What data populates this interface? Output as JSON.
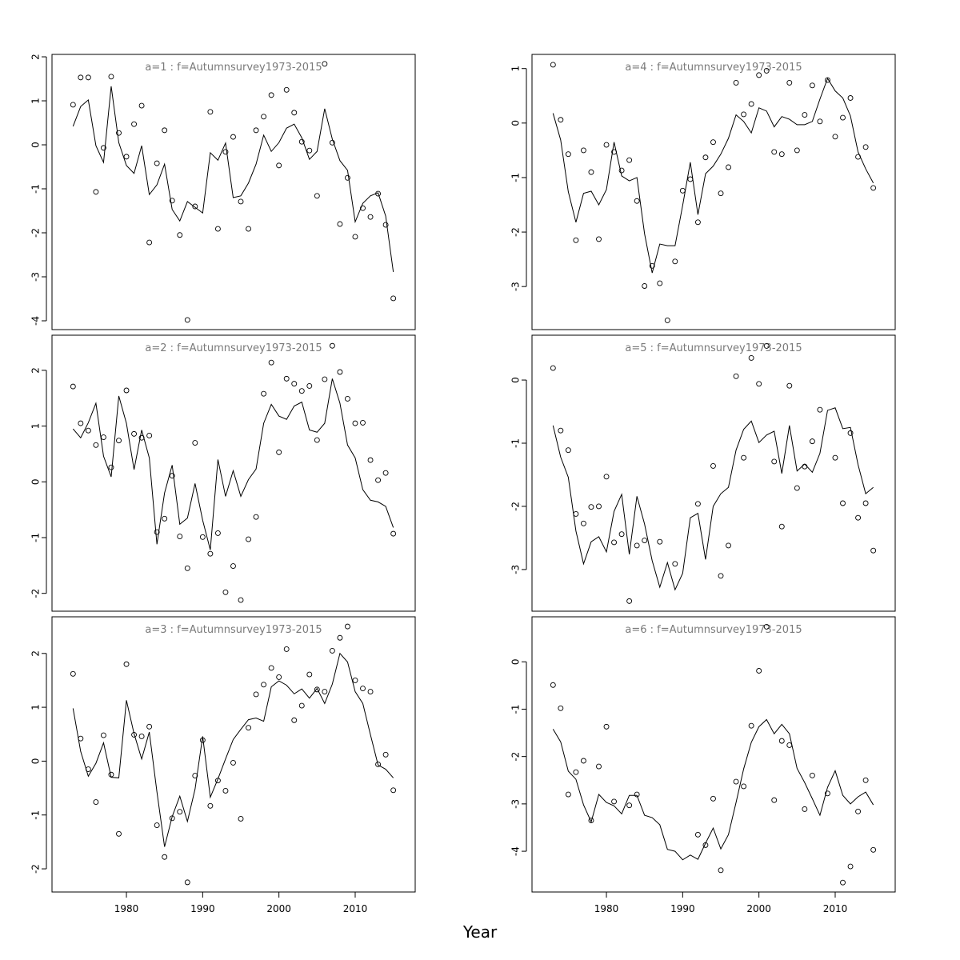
{
  "xlabel": "Year",
  "chart_data": [
    {
      "type": "line",
      "title": "a=1 : f=Autumnsurvey1973-2015",
      "x": [
        1973,
        1974,
        1975,
        1976,
        1977,
        1978,
        1979,
        1980,
        1981,
        1982,
        1983,
        1984,
        1985,
        1986,
        1987,
        1988,
        1989,
        1990,
        1991,
        1992,
        1993,
        1994,
        1995,
        1996,
        1997,
        1998,
        1999,
        2000,
        2001,
        2002,
        2003,
        2004,
        2005,
        2006,
        2007,
        2008,
        2009,
        2010,
        2011,
        2012,
        2013,
        2014,
        2015
      ],
      "xlim": [
        1970.24,
        2017.87
      ],
      "ylim": [
        -4.2,
        2.055
      ],
      "yticks": [
        -4,
        -3,
        -2,
        -1,
        0,
        1,
        2
      ],
      "series": [
        {
          "mark": "points",
          "color": "#000000",
          "values": [
            0.91,
            1.53,
            1.53,
            -1.07,
            -0.07,
            1.55,
            0.27,
            -0.27,
            0.47,
            0.89,
            -2.22,
            -0.42,
            0.33,
            -1.27,
            -2.05,
            -3.98,
            -1.4,
            null,
            0.75,
            -1.91,
            -0.16,
            0.18,
            -1.29,
            -1.91,
            0.33,
            0.64,
            1.13,
            -0.47,
            1.25,
            0.73,
            0.07,
            -0.13,
            -1.16,
            1.84,
            0.05,
            -1.8,
            -0.75,
            -2.09,
            -1.44,
            -1.64,
            -1.11,
            -1.82,
            -3.49
          ]
        },
        {
          "mark": "line",
          "color": "#000000",
          "values": [
            0.42,
            0.87,
            1.02,
            -0.02,
            -0.4,
            1.33,
            0.05,
            -0.47,
            -0.65,
            -0.02,
            -1.13,
            -0.91,
            -0.44,
            -1.47,
            -1.73,
            -1.29,
            -1.42,
            -1.55,
            -0.18,
            -0.35,
            0.04,
            -1.2,
            -1.16,
            -0.87,
            -0.44,
            0.22,
            -0.15,
            0.05,
            0.38,
            0.47,
            0.16,
            -0.33,
            -0.15,
            0.82,
            0.13,
            -0.36,
            -0.58,
            -1.75,
            -1.33,
            -1.16,
            -1.09,
            -1.62,
            -2.89
          ]
        }
      ]
    },
    {
      "type": "line",
      "title": "a=2 : f=Autumnsurvey1973-2015",
      "x": [
        1973,
        1974,
        1975,
        1976,
        1977,
        1978,
        1979,
        1980,
        1981,
        1982,
        1983,
        1984,
        1985,
        1986,
        1987,
        1988,
        1989,
        1990,
        1991,
        1992,
        1993,
        1994,
        1995,
        1996,
        1997,
        1998,
        1999,
        2000,
        2001,
        2002,
        2003,
        2004,
        2005,
        2006,
        2007,
        2008,
        2009,
        2010,
        2011,
        2012,
        2013,
        2014,
        2015
      ],
      "xlim": [
        1970.24,
        2017.87
      ],
      "ylim": [
        -2.32,
        2.63
      ],
      "yticks": [
        -2,
        -1,
        0,
        1,
        2
      ],
      "series": [
        {
          "mark": "points",
          "color": "#000000",
          "values": [
            1.71,
            1.05,
            0.92,
            0.66,
            0.8,
            0.26,
            0.74,
            1.64,
            0.86,
            0.79,
            0.83,
            -0.9,
            -0.66,
            0.11,
            -0.98,
            -1.55,
            0.7,
            -0.99,
            -1.29,
            -0.92,
            -1.98,
            -1.51,
            -2.12,
            -1.03,
            -0.63,
            1.58,
            2.14,
            0.53,
            1.85,
            1.76,
            1.63,
            1.72,
            0.75,
            1.84,
            2.44,
            1.97,
            1.49,
            1.05,
            1.06,
            0.39,
            0.03,
            0.16,
            -0.93
          ]
        },
        {
          "mark": "line",
          "color": "#000000",
          "values": [
            0.95,
            0.79,
            1.06,
            1.41,
            0.46,
            0.09,
            1.54,
            1.05,
            0.22,
            0.93,
            0.43,
            -1.12,
            -0.2,
            0.3,
            -0.76,
            -0.65,
            -0.03,
            -0.69,
            -1.22,
            0.4,
            -0.26,
            0.2,
            -0.26,
            0.04,
            0.23,
            1.05,
            1.39,
            1.18,
            1.12,
            1.36,
            1.43,
            0.93,
            0.89,
            1.05,
            1.85,
            1.41,
            0.66,
            0.43,
            -0.14,
            -0.33,
            -0.36,
            -0.44,
            -0.82
          ]
        }
      ]
    },
    {
      "type": "line",
      "title": "a=3 : f=Autumnsurvey1973-2015",
      "x": [
        1973,
        1974,
        1975,
        1976,
        1977,
        1978,
        1979,
        1980,
        1981,
        1982,
        1983,
        1984,
        1985,
        1986,
        1987,
        1988,
        1989,
        1990,
        1991,
        1992,
        1993,
        1994,
        1995,
        1996,
        1997,
        1998,
        1999,
        2000,
        2001,
        2002,
        2003,
        2004,
        2005,
        2006,
        2007,
        2008,
        2009,
        2010,
        2011,
        2012,
        2013,
        2014,
        2015
      ],
      "xlim": [
        1970.24,
        2017.87
      ],
      "ylim": [
        -2.43,
        2.68
      ],
      "yticks": [
        -2,
        -1,
        0,
        1,
        2
      ],
      "xticks": [
        1980,
        1990,
        2000,
        2010
      ],
      "series": [
        {
          "mark": "points",
          "color": "#000000",
          "values": [
            1.62,
            0.42,
            -0.15,
            -0.76,
            0.48,
            -0.25,
            -1.35,
            1.8,
            0.49,
            0.46,
            0.64,
            -1.19,
            -1.78,
            -1.06,
            -0.94,
            -2.25,
            -0.27,
            0.39,
            -0.83,
            -0.36,
            -0.55,
            -0.03,
            -1.07,
            0.62,
            1.24,
            1.42,
            1.73,
            1.56,
            2.08,
            0.76,
            1.03,
            1.61,
            1.33,
            1.29,
            2.05,
            2.29,
            2.5,
            1.5,
            1.35,
            1.29,
            -0.06,
            0.12,
            -0.54
          ]
        },
        {
          "mark": "line",
          "color": "#000000",
          "values": [
            0.98,
            0.18,
            -0.28,
            -0.04,
            0.34,
            -0.3,
            -0.31,
            1.13,
            0.51,
            0.04,
            0.54,
            -0.57,
            -1.59,
            -1.03,
            -0.65,
            -1.12,
            -0.52,
            0.46,
            -0.67,
            -0.33,
            0.04,
            0.4,
            0.59,
            0.77,
            0.8,
            0.74,
            1.38,
            1.49,
            1.41,
            1.25,
            1.34,
            1.17,
            1.35,
            1.07,
            1.43,
            2.0,
            1.84,
            1.29,
            1.07,
            0.49,
            -0.07,
            -0.15,
            -0.31
          ]
        }
      ]
    },
    {
      "type": "line",
      "title": "a=4 : f=Autumnsurvey1973-2015",
      "x": [
        1973,
        1974,
        1975,
        1976,
        1977,
        1978,
        1979,
        1980,
        1981,
        1982,
        1983,
        1984,
        1985,
        1986,
        1987,
        1988,
        1989,
        1990,
        1991,
        1992,
        1993,
        1994,
        1995,
        1996,
        1997,
        1998,
        1999,
        2000,
        2001,
        2002,
        2003,
        2004,
        2005,
        2006,
        2007,
        2008,
        2009,
        2010,
        2011,
        2012,
        2013,
        2014,
        2015
      ],
      "xlim": [
        1970.24,
        2017.87
      ],
      "ylim": [
        -3.79,
        1.26
      ],
      "yticks": [
        -3,
        -2,
        -1,
        0,
        1
      ],
      "series": [
        {
          "mark": "points",
          "color": "#000000",
          "values": [
            1.07,
            0.06,
            -0.57,
            -2.15,
            -0.5,
            -0.9,
            -2.13,
            -0.4,
            -0.53,
            -0.87,
            -0.68,
            -1.43,
            -2.99,
            -2.62,
            -2.94,
            -3.62,
            -2.54,
            -1.24,
            -1.03,
            -1.82,
            -0.63,
            -0.35,
            -1.29,
            -0.81,
            0.74,
            0.16,
            0.35,
            0.88,
            0.96,
            -0.53,
            -0.57,
            0.74,
            -0.5,
            0.15,
            0.69,
            0.03,
            0.79,
            -0.25,
            0.1,
            0.46,
            -0.62,
            -0.44,
            -1.19
          ]
        },
        {
          "mark": "line",
          "color": "#000000",
          "values": [
            0.18,
            -0.31,
            -1.26,
            -1.82,
            -1.29,
            -1.25,
            -1.5,
            -1.22,
            -0.35,
            -0.97,
            -1.06,
            -1.0,
            -2.03,
            -2.75,
            -2.22,
            -2.25,
            -2.25,
            -1.51,
            -0.72,
            -1.68,
            -0.93,
            -0.79,
            -0.57,
            -0.28,
            0.15,
            0.03,
            -0.18,
            0.28,
            0.22,
            -0.07,
            0.12,
            0.07,
            -0.03,
            -0.03,
            0.03,
            0.44,
            0.82,
            0.59,
            0.46,
            0.13,
            -0.53,
            -0.84,
            -1.1
          ]
        }
      ]
    },
    {
      "type": "line",
      "title": "a=5 : f=Autumnsurvey1973-2015",
      "x": [
        1973,
        1974,
        1975,
        1976,
        1977,
        1978,
        1979,
        1980,
        1981,
        1982,
        1983,
        1984,
        1985,
        1986,
        1987,
        1988,
        1989,
        1990,
        1991,
        1992,
        1993,
        1994,
        1995,
        1996,
        1997,
        1998,
        1999,
        2000,
        2001,
        2002,
        2003,
        2004,
        2005,
        2006,
        2007,
        2008,
        2009,
        2010,
        2011,
        2012,
        2013,
        2014,
        2015
      ],
      "xlim": [
        1970.24,
        2017.87
      ],
      "ylim": [
        -3.66,
        0.71
      ],
      "yticks": [
        -3,
        -2,
        -1,
        0
      ],
      "series": [
        {
          "mark": "points",
          "color": "#000000",
          "values": [
            0.19,
            -0.8,
            -1.11,
            -2.12,
            -2.27,
            -2.01,
            -2.0,
            -1.53,
            -2.57,
            -2.44,
            -3.5,
            -2.62,
            -2.54,
            null,
            -2.56,
            null,
            -2.91,
            null,
            null,
            -1.96,
            null,
            -1.36,
            -3.1,
            -2.62,
            0.06,
            -1.23,
            0.35,
            -0.06,
            0.54,
            -1.29,
            -2.32,
            -0.09,
            -1.71,
            -1.37,
            -0.97,
            -0.47,
            null,
            -1.23,
            -1.95,
            -0.84,
            -2.18,
            -1.95,
            -2.7
          ]
        },
        {
          "mark": "line",
          "color": "#000000",
          "values": [
            -0.72,
            -1.22,
            -1.54,
            -2.39,
            -2.91,
            -2.56,
            -2.48,
            -2.72,
            -2.08,
            -1.81,
            -2.76,
            -1.84,
            -2.28,
            -2.86,
            -3.28,
            -2.89,
            -3.32,
            -3.06,
            -2.18,
            -2.11,
            -2.84,
            -2.0,
            -1.8,
            -1.7,
            -1.11,
            -0.78,
            -0.65,
            -0.99,
            -0.87,
            -0.81,
            -1.48,
            -0.72,
            -1.44,
            -1.33,
            -1.46,
            -1.16,
            -0.48,
            -0.44,
            -0.77,
            -0.75,
            -1.34,
            -1.8,
            -1.7
          ]
        }
      ]
    },
    {
      "type": "line",
      "title": "a=6 : f=Autumnsurvey1973-2015",
      "x": [
        1973,
        1974,
        1975,
        1976,
        1977,
        1978,
        1979,
        1980,
        1981,
        1982,
        1983,
        1984,
        1985,
        1986,
        1987,
        1988,
        1989,
        1990,
        1991,
        1992,
        1993,
        1994,
        1995,
        1996,
        1997,
        1998,
        1999,
        2000,
        2001,
        2002,
        2003,
        2004,
        2005,
        2006,
        2007,
        2008,
        2009,
        2010,
        2011,
        2012,
        2013,
        2014,
        2015
      ],
      "xlim": [
        1970.24,
        2017.87
      ],
      "ylim": [
        -4.86,
        0.95
      ],
      "yticks": [
        -4,
        -3,
        -2,
        -1,
        0
      ],
      "xticks": [
        1980,
        1990,
        2000,
        2010
      ],
      "series": [
        {
          "mark": "points",
          "color": "#000000",
          "values": [
            -0.49,
            -0.98,
            -2.8,
            -2.33,
            -2.09,
            -3.35,
            -2.21,
            -1.37,
            -2.95,
            null,
            -3.03,
            -2.8,
            null,
            null,
            null,
            null,
            null,
            null,
            null,
            -3.65,
            -3.87,
            -2.89,
            -4.4,
            null,
            -2.53,
            -2.63,
            -1.35,
            -0.19,
            0.74,
            -2.92,
            -1.67,
            -1.76,
            null,
            -3.11,
            -2.4,
            null,
            -2.78,
            null,
            -4.66,
            -4.32,
            -3.16,
            -2.5,
            -3.97
          ]
        },
        {
          "mark": "line",
          "color": "#000000",
          "values": [
            -1.42,
            -1.69,
            -2.31,
            -2.48,
            -3.02,
            -3.38,
            -2.8,
            -2.97,
            -3.04,
            -3.21,
            -2.82,
            -2.82,
            -3.24,
            -3.29,
            -3.44,
            -3.96,
            -4.0,
            -4.18,
            -4.08,
            -4.17,
            -3.83,
            -3.51,
            -3.95,
            -3.65,
            -2.97,
            -2.26,
            -1.7,
            -1.37,
            -1.22,
            -1.52,
            -1.32,
            -1.52,
            -2.25,
            -2.55,
            -2.89,
            -3.24,
            -2.65,
            -2.3,
            -2.82,
            -3.0,
            -2.85,
            -2.75,
            -3.02
          ]
        }
      ]
    }
  ]
}
